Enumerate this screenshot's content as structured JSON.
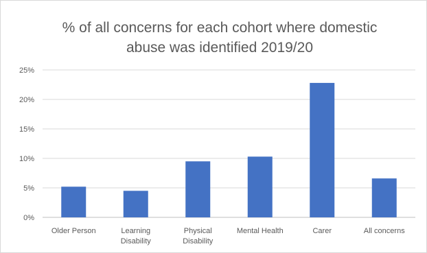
{
  "chart_data": {
    "type": "bar",
    "title_lines": [
      "% of all concerns for each cohort where domestic",
      "abuse was identified 2019/20"
    ],
    "categories": [
      [
        "Older Person"
      ],
      [
        "Learning",
        "Disability"
      ],
      [
        "Physical",
        "Disability"
      ],
      [
        "Mental Health"
      ],
      [
        "Carer"
      ],
      [
        "All concerns"
      ]
    ],
    "values": [
      5.2,
      4.5,
      9.5,
      10.3,
      22.8,
      6.6
    ],
    "value_unit": "%",
    "ylim": [
      0,
      25
    ],
    "yticks": [
      "0%",
      "5%",
      "10%",
      "15%",
      "20%",
      "25%"
    ],
    "xlabel": "",
    "ylabel": "",
    "grid": true,
    "legend": "none",
    "colors": {
      "bar": "#4472c4",
      "grid": "#d9d9d9",
      "text": "#595959"
    }
  }
}
